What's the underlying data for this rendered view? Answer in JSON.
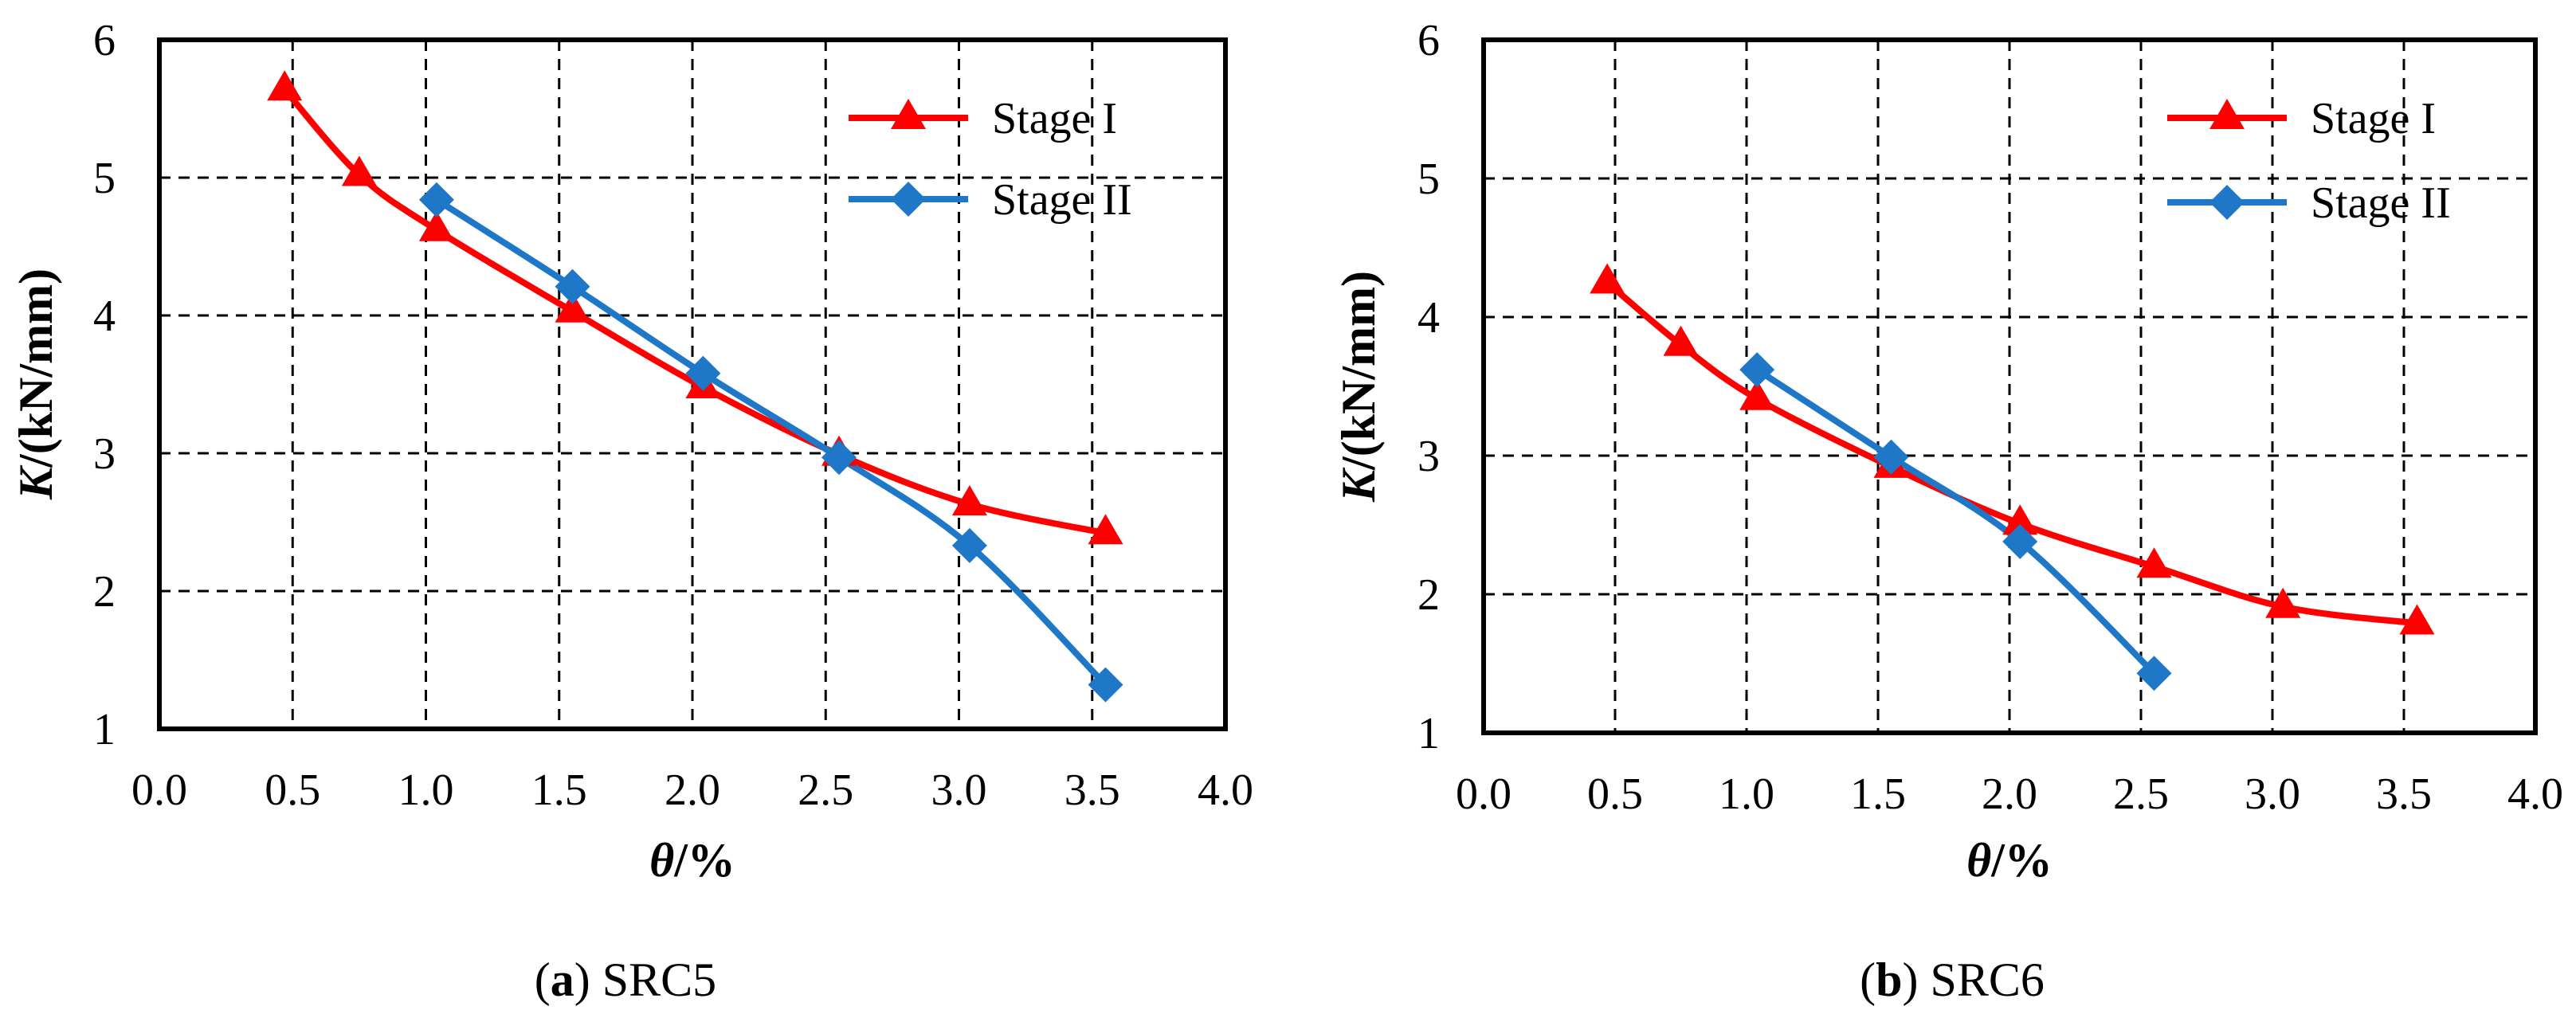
{
  "chart_data": [
    {
      "type": "line",
      "panel": "a",
      "caption_label": "a",
      "caption_text": "SRC5",
      "xlabel_symbol": "θ",
      "xlabel_unit": "/%",
      "ylabel_symbol": "K",
      "ylabel_unit": "/(kN/mm)",
      "xlim": [
        0,
        4
      ],
      "ylim": [
        1,
        6
      ],
      "xticks": [
        "0.0",
        "0.5",
        "1.0",
        "1.5",
        "2.0",
        "2.5",
        "3.0",
        "3.5",
        "4.0"
      ],
      "yticks": [
        "1",
        "2",
        "3",
        "4",
        "5",
        "6"
      ],
      "grid": true,
      "legend_position": "top-right",
      "series": [
        {
          "name": "Stage I",
          "color": "#FF0000",
          "marker": "triangle",
          "x": [
            0.47,
            0.75,
            1.04,
            1.55,
            2.04,
            2.55,
            3.04,
            3.55
          ],
          "y": [
            5.64,
            5.02,
            4.62,
            4.03,
            3.48,
            2.99,
            2.63,
            2.42
          ]
        },
        {
          "name": "Stage II",
          "color": "#1F77C8",
          "marker": "diamond",
          "x": [
            1.04,
            1.55,
            2.04,
            2.55,
            3.04,
            3.55
          ],
          "y": [
            4.84,
            4.21,
            3.58,
            2.97,
            2.33,
            1.32
          ]
        }
      ]
    },
    {
      "type": "line",
      "panel": "b",
      "caption_label": "b",
      "caption_text": "SRC6",
      "xlabel_symbol": "θ",
      "xlabel_unit": "/%",
      "ylabel_symbol": "K",
      "ylabel_unit": "/(kN/mm)",
      "xlim": [
        0,
        4
      ],
      "ylim": [
        1,
        6
      ],
      "xticks": [
        "0.0",
        "0.5",
        "1.0",
        "1.5",
        "2.0",
        "2.5",
        "3.0",
        "3.5",
        "4.0"
      ],
      "yticks": [
        "1",
        "2",
        "3",
        "4",
        "5",
        "6"
      ],
      "grid": true,
      "legend_position": "top-right",
      "series": [
        {
          "name": "Stage I",
          "color": "#FF0000",
          "marker": "triangle",
          "x": [
            0.47,
            0.75,
            1.04,
            1.55,
            2.04,
            2.55,
            3.04,
            3.55
          ],
          "y": [
            4.25,
            3.8,
            3.41,
            2.92,
            2.51,
            2.2,
            1.91,
            1.79
          ]
        },
        {
          "name": "Stage II",
          "color": "#1F77C8",
          "marker": "diamond",
          "x": [
            1.04,
            1.55,
            2.04,
            2.55
          ],
          "y": [
            3.62,
            2.99,
            2.38,
            1.43
          ]
        }
      ]
    }
  ]
}
